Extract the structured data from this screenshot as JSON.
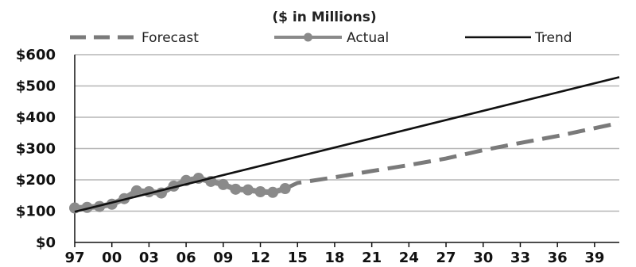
{
  "chart_data": {
    "type": "line",
    "title": "($ in Millions)",
    "xlabel": "",
    "ylabel": "",
    "xlim": [
      1997,
      2041
    ],
    "ylim": [
      0,
      600
    ],
    "grid": true,
    "legend_position": "top",
    "y_ticks": [
      "$0",
      "$100",
      "$200",
      "$300",
      "$400",
      "$500",
      "$600"
    ],
    "y_tick_values": [
      0,
      100,
      200,
      300,
      400,
      500,
      600
    ],
    "x_tick_labels": [
      "97",
      "00",
      "03",
      "06",
      "09",
      "12",
      "15",
      "18",
      "21",
      "24",
      "27",
      "30",
      "33",
      "36",
      "39"
    ],
    "x_tick_values": [
      1997,
      2000,
      2003,
      2006,
      2009,
      2012,
      2015,
      2018,
      2021,
      2024,
      2027,
      2030,
      2033,
      2036,
      2039
    ],
    "series": [
      {
        "name": "Forecast",
        "style": "dashed",
        "color": "#7a7a7a",
        "x": [
          2014,
          2015,
          2018,
          2021,
          2024,
          2027,
          2030,
          2033,
          2036,
          2039,
          2041
        ],
        "values": [
          172,
          190,
          208,
          228,
          247,
          268,
          295,
          318,
          340,
          365,
          382
        ]
      },
      {
        "name": "Actual",
        "style": "marker-line",
        "color": "#8a8a8a",
        "x": [
          1997,
          1998,
          1999,
          2000,
          2001,
          2002,
          2003,
          2004,
          2005,
          2006,
          2007,
          2008,
          2009,
          2010,
          2011,
          2012,
          2013,
          2014
        ],
        "values": [
          110,
          112,
          115,
          122,
          140,
          165,
          162,
          158,
          180,
          198,
          205,
          195,
          185,
          170,
          168,
          162,
          160,
          172
        ]
      },
      {
        "name": "Trend",
        "style": "solid",
        "color": "#111111",
        "x": [
          1997,
          2041
        ],
        "values": [
          98,
          528
        ]
      }
    ]
  }
}
